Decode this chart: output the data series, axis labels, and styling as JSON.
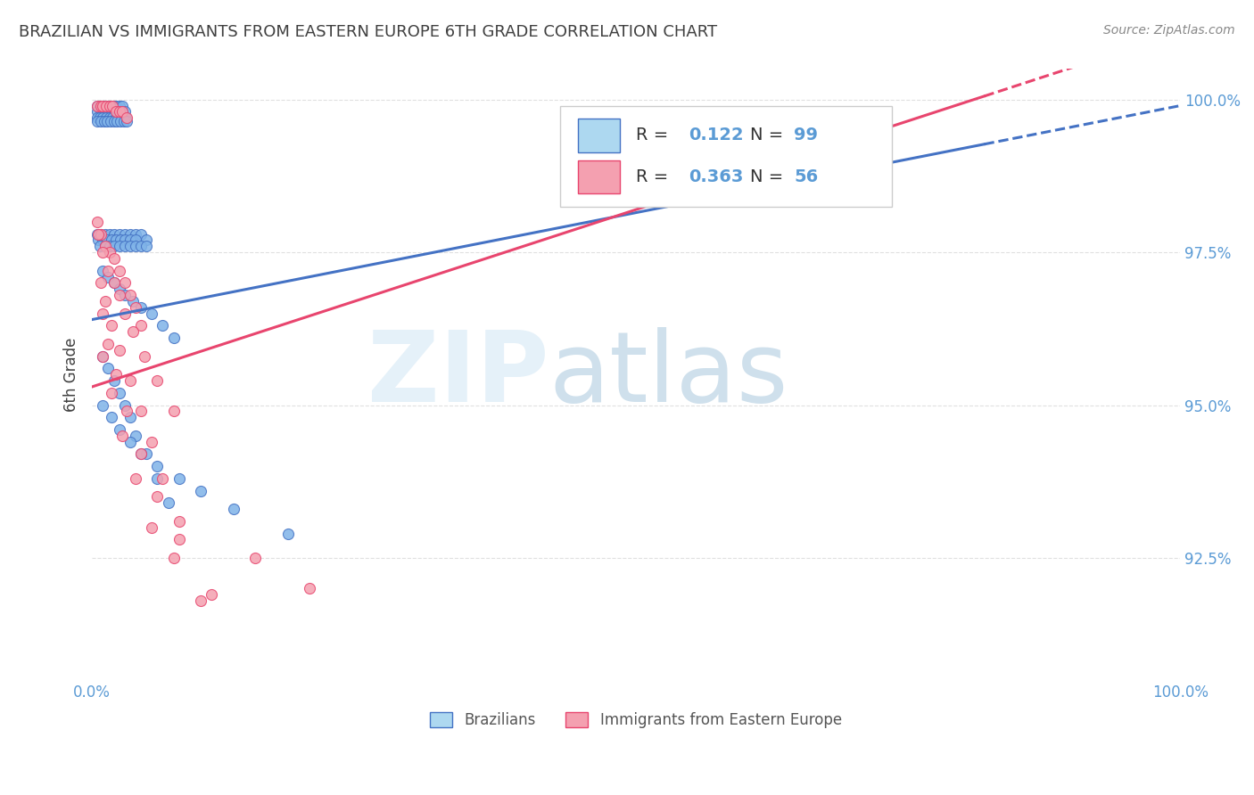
{
  "title": "BRAZILIAN VS IMMIGRANTS FROM EASTERN EUROPE 6TH GRADE CORRELATION CHART",
  "source": "Source: ZipAtlas.com",
  "ylabel": "6th Grade",
  "xlim": [
    0.0,
    1.0
  ],
  "ylim": [
    0.905,
    1.005
  ],
  "yticks": [
    0.925,
    0.95,
    0.975,
    1.0
  ],
  "ytick_labels": [
    "92.5%",
    "95.0%",
    "97.5%",
    "100.0%"
  ],
  "xtick_labels": [
    "0.0%",
    "100.0%"
  ],
  "xticks": [
    0.0,
    1.0
  ],
  "r_brazilian": 0.122,
  "n_brazilian": 99,
  "r_eastern": 0.363,
  "n_eastern": 56,
  "color_brazilian": "#7FB3E8",
  "color_eastern": "#F4A0B0",
  "color_trendline_brazilian": "#4472C4",
  "color_trendline_eastern": "#E8456E",
  "color_axis_labels": "#5B9BD5",
  "color_title": "#404040",
  "background_color": "#FFFFFF",
  "grid_color": "#E0E0E0",
  "legend_box_color_brazilian": "#ADD8F0",
  "legend_box_color_eastern": "#F4A0B0",
  "scatter_brazilian_x": [
    0.005,
    0.008,
    0.01,
    0.012,
    0.015,
    0.018,
    0.02,
    0.022,
    0.025,
    0.028,
    0.005,
    0.008,
    0.012,
    0.015,
    0.018,
    0.02,
    0.022,
    0.025,
    0.028,
    0.03,
    0.005,
    0.007,
    0.01,
    0.013,
    0.016,
    0.019,
    0.022,
    0.025,
    0.028,
    0.031,
    0.005,
    0.008,
    0.011,
    0.014,
    0.017,
    0.02,
    0.023,
    0.026,
    0.029,
    0.032,
    0.005,
    0.008,
    0.012,
    0.016,
    0.02,
    0.025,
    0.03,
    0.035,
    0.04,
    0.045,
    0.006,
    0.01,
    0.014,
    0.018,
    0.022,
    0.026,
    0.03,
    0.035,
    0.04,
    0.05,
    0.007,
    0.012,
    0.016,
    0.02,
    0.025,
    0.03,
    0.035,
    0.04,
    0.045,
    0.05,
    0.01,
    0.015,
    0.02,
    0.025,
    0.03,
    0.038,
    0.045,
    0.055,
    0.065,
    0.075,
    0.01,
    0.015,
    0.02,
    0.025,
    0.03,
    0.035,
    0.04,
    0.05,
    0.06,
    0.07,
    0.01,
    0.018,
    0.025,
    0.035,
    0.045,
    0.06,
    0.08,
    0.1,
    0.13,
    0.18
  ],
  "scatter_brazilian_y": [
    0.999,
    0.999,
    0.999,
    0.999,
    0.999,
    0.999,
    0.999,
    0.999,
    0.999,
    0.999,
    0.998,
    0.998,
    0.998,
    0.998,
    0.998,
    0.998,
    0.998,
    0.998,
    0.998,
    0.998,
    0.997,
    0.997,
    0.997,
    0.997,
    0.997,
    0.997,
    0.997,
    0.997,
    0.997,
    0.997,
    0.9965,
    0.9965,
    0.9965,
    0.9965,
    0.9965,
    0.9965,
    0.9965,
    0.9965,
    0.9965,
    0.9965,
    0.978,
    0.978,
    0.978,
    0.978,
    0.978,
    0.978,
    0.978,
    0.978,
    0.978,
    0.978,
    0.977,
    0.977,
    0.977,
    0.977,
    0.977,
    0.977,
    0.977,
    0.977,
    0.977,
    0.977,
    0.976,
    0.976,
    0.976,
    0.976,
    0.976,
    0.976,
    0.976,
    0.976,
    0.976,
    0.976,
    0.972,
    0.971,
    0.97,
    0.969,
    0.968,
    0.967,
    0.966,
    0.965,
    0.963,
    0.961,
    0.958,
    0.956,
    0.954,
    0.952,
    0.95,
    0.948,
    0.945,
    0.942,
    0.938,
    0.934,
    0.95,
    0.948,
    0.946,
    0.944,
    0.942,
    0.94,
    0.938,
    0.936,
    0.933,
    0.929
  ],
  "scatter_eastern_x": [
    0.005,
    0.008,
    0.01,
    0.013,
    0.016,
    0.019,
    0.022,
    0.025,
    0.028,
    0.032,
    0.005,
    0.008,
    0.012,
    0.016,
    0.02,
    0.025,
    0.03,
    0.035,
    0.04,
    0.045,
    0.006,
    0.01,
    0.015,
    0.02,
    0.025,
    0.03,
    0.038,
    0.048,
    0.06,
    0.075,
    0.008,
    0.012,
    0.018,
    0.025,
    0.035,
    0.045,
    0.055,
    0.065,
    0.08,
    0.01,
    0.015,
    0.022,
    0.032,
    0.045,
    0.06,
    0.08,
    0.11,
    0.15,
    0.2,
    0.01,
    0.018,
    0.028,
    0.04,
    0.055,
    0.075,
    0.1
  ],
  "scatter_eastern_y": [
    0.999,
    0.999,
    0.999,
    0.999,
    0.999,
    0.999,
    0.998,
    0.998,
    0.998,
    0.997,
    0.98,
    0.978,
    0.976,
    0.975,
    0.974,
    0.972,
    0.97,
    0.968,
    0.966,
    0.963,
    0.978,
    0.975,
    0.972,
    0.97,
    0.968,
    0.965,
    0.962,
    0.958,
    0.954,
    0.949,
    0.97,
    0.967,
    0.963,
    0.959,
    0.954,
    0.949,
    0.944,
    0.938,
    0.931,
    0.965,
    0.96,
    0.955,
    0.949,
    0.942,
    0.935,
    0.928,
    0.919,
    0.925,
    0.92,
    0.958,
    0.952,
    0.945,
    0.938,
    0.93,
    0.925,
    0.918
  ],
  "trendline_x_solid_end_b": 0.82,
  "trendline_x_solid_end_e": 0.82,
  "trendline_b_slope": 0.035,
  "trendline_b_intercept": 0.964,
  "trendline_e_slope": 0.058,
  "trendline_e_intercept": 0.953
}
